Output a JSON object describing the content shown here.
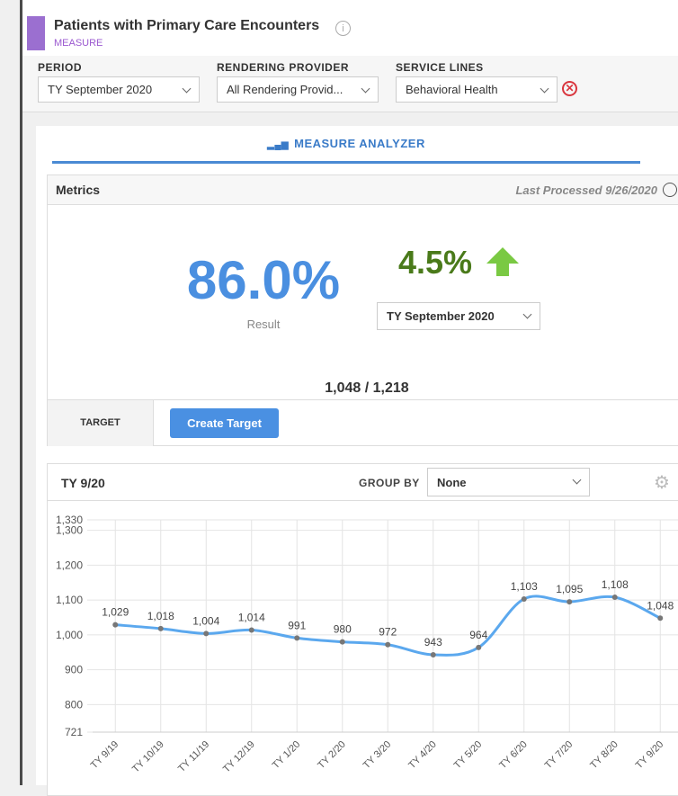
{
  "header": {
    "title": "Patients with Primary Care Encounters",
    "subtitle": "MEASURE"
  },
  "filters": [
    {
      "label": "PERIOD",
      "value": "TY September 2020"
    },
    {
      "label": "RENDERING PROVIDER",
      "value": "All Rendering Provid..."
    },
    {
      "label": "SERVICE LINES",
      "value": "Behavioral Health"
    }
  ],
  "tab": "MEASURE ANALYZER",
  "metrics": {
    "title": "Metrics",
    "last_processed": "Last Processed 9/26/2020",
    "result": "86.0%",
    "result_label": "Result",
    "change": "4.5%",
    "period": "TY September 2020",
    "ratio": "1,048 / 1,218",
    "target_label": "TARGET",
    "target_button": "Create Target"
  },
  "chart_panel": {
    "title": "TY 9/20",
    "group_by_label": "GROUP BY",
    "group_by": "None"
  },
  "chart_data": {
    "type": "line",
    "categories": [
      "TY 9/19",
      "TY 10/19",
      "TY 11/19",
      "TY 12/19",
      "TY 1/20",
      "TY 2/20",
      "TY 3/20",
      "TY 4/20",
      "TY 5/20",
      "TY 6/20",
      "TY 7/20",
      "TY 8/20",
      "TY 9/20"
    ],
    "values": [
      1029,
      1018,
      1004,
      1014,
      991,
      980,
      972,
      943,
      964,
      1103,
      1095,
      1108,
      1048
    ],
    "value_labels": [
      "1,029",
      "1,018",
      "1,004",
      "1,014",
      "991",
      "980",
      "972",
      "943",
      "964",
      "1,103",
      "1,095",
      "1,108",
      "1,048"
    ],
    "color": "#5ba8ee",
    "ylim": [
      721,
      1330
    ],
    "yticks": [
      721,
      800,
      900,
      {
        "value": 1000,
        "label": "1,000"
      },
      {
        "value": 1100,
        "label": "1,100"
      },
      {
        "value": 1200,
        "label": "1,200"
      },
      {
        "value": 1300,
        "label": "1,300"
      },
      {
        "value": 1330,
        "label": "1,330"
      }
    ],
    "grid": true
  }
}
